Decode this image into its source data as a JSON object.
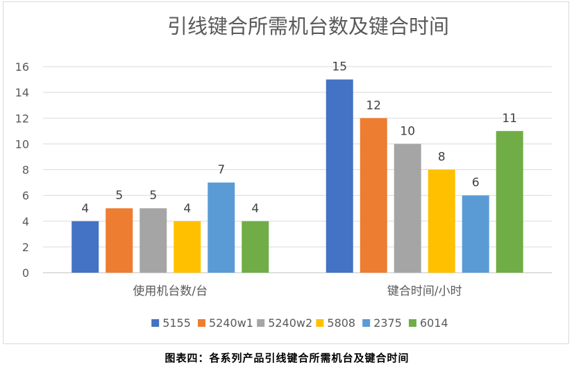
{
  "chart_data": {
    "type": "bar",
    "title": "引线键合所需机台数及键合时间",
    "categories": [
      "使用机台数/台",
      "键合时间/小时"
    ],
    "series": [
      {
        "name": "5155",
        "values": [
          4,
          15
        ],
        "color": "#4472c4"
      },
      {
        "name": "5240w1",
        "values": [
          5,
          12
        ],
        "color": "#ed7d31"
      },
      {
        "name": "5240w2",
        "values": [
          5,
          10
        ],
        "color": "#a5a5a5"
      },
      {
        "name": "5808",
        "values": [
          4,
          8
        ],
        "color": "#ffc000"
      },
      {
        "name": "2375",
        "values": [
          7,
          6
        ],
        "color": "#5b9bd5"
      },
      {
        "name": "6014",
        "values": [
          4,
          11
        ],
        "color": "#70ad47"
      }
    ],
    "ylim": [
      0,
      16
    ],
    "yticks": [
      0,
      2,
      4,
      6,
      8,
      10,
      12,
      14,
      16
    ],
    "grid": true,
    "legend_position": "bottom"
  },
  "caption": "图表四：各系列产品引线键合所需机台及键合时间"
}
